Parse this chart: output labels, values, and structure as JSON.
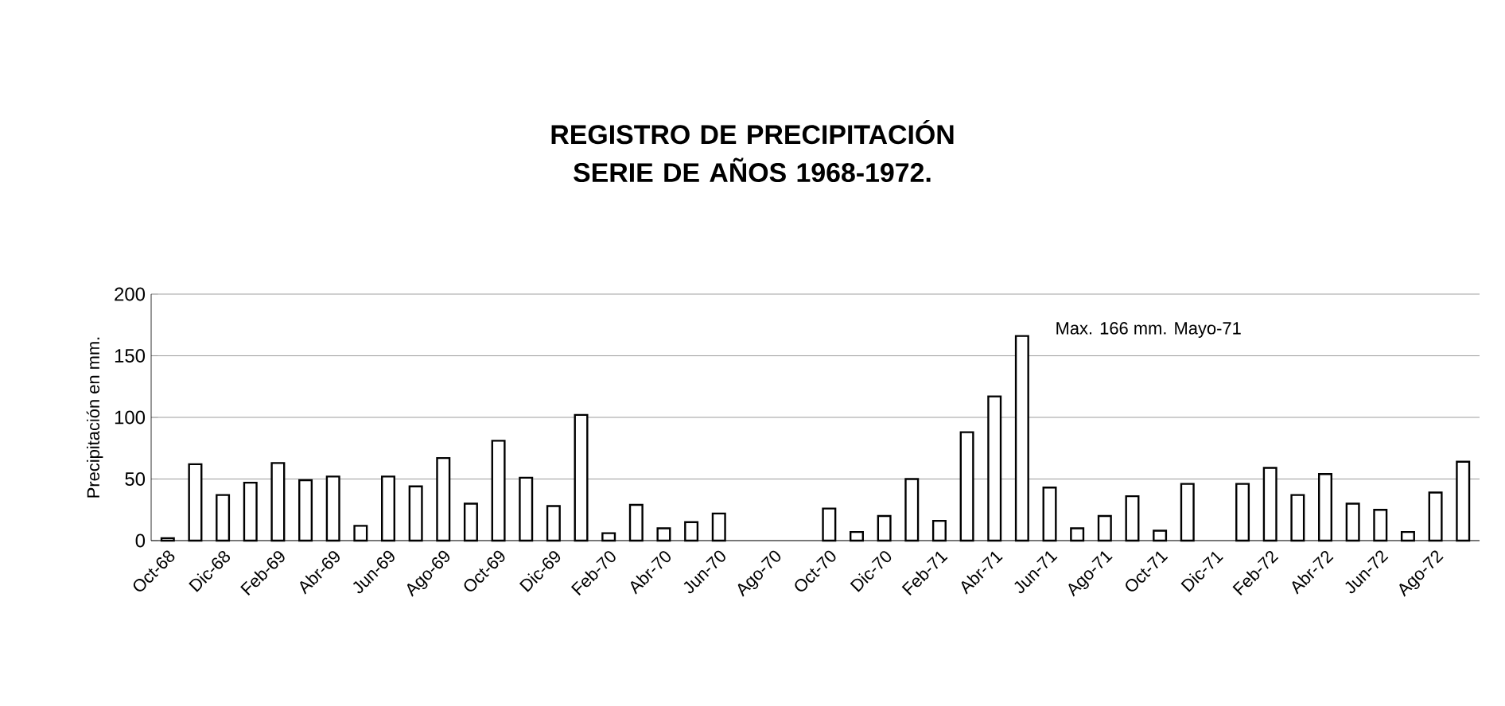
{
  "chart_data": {
    "type": "bar",
    "title": "REGISTRO DE PRECIPITACIÓN SERIE DE AÑOS 1968-1972.",
    "ylabel": "Precipitación en  mm.",
    "categories": [
      "Oct-68",
      null,
      "Dic-68",
      null,
      "Feb-69",
      null,
      "Abr-69",
      null,
      "Jun-69",
      null,
      "Ago-69",
      null,
      "Oct-69",
      null,
      "Dic-69",
      null,
      "Feb-70",
      null,
      "Abr-70",
      null,
      "Jun-70",
      null,
      "Ago-70",
      null,
      "Oct-70",
      null,
      "Dic-70",
      null,
      "Feb-71",
      null,
      "Abr-71",
      null,
      "Jun-71",
      null,
      "Ago-71",
      null,
      "Oct-71",
      null,
      "Dic-71",
      null,
      "Feb-72",
      null,
      "Abr-72",
      null,
      "Jun-72",
      null,
      "Ago-72",
      null
    ],
    "values": [
      2,
      62,
      37,
      47,
      63,
      49,
      52,
      12,
      52,
      44,
      67,
      30,
      81,
      51,
      28,
      102,
      6,
      29,
      10,
      15,
      22,
      null,
      null,
      null,
      26,
      7,
      20,
      50,
      16,
      88,
      117,
      166,
      43,
      10,
      20,
      36,
      8,
      46,
      null,
      46,
      59,
      37,
      54,
      30,
      25,
      7,
      39,
      64
    ],
    "color": "#ffffff",
    "ylim": [
      0,
      200
    ],
    "yticks": [
      0,
      50,
      100,
      150,
      200
    ],
    "grid": "y",
    "annotations": [
      "Max. 166 mm. Mayo-71"
    ]
  }
}
